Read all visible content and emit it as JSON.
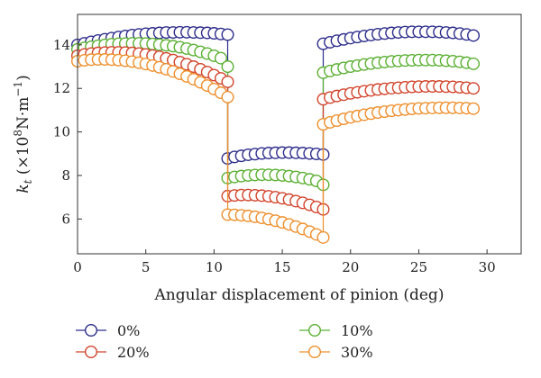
{
  "chart_data": {
    "type": "scatter",
    "xlabel": "Angular displacement of pinion (deg)",
    "ylabel": {
      "base": "k",
      "sub": "t",
      "unit_open": " (×10",
      "exp": "8",
      "unit_mid": "N·m",
      "unit_exp": "−1",
      "unit_close": ")"
    },
    "xlim": [
      0,
      32.5
    ],
    "ylim": [
      4.4,
      15.4
    ],
    "x_ticks": [
      0,
      5,
      10,
      15,
      20,
      25,
      30
    ],
    "y_ticks": [
      6,
      8,
      10,
      12,
      14
    ],
    "grid": false,
    "legend_position": "bottom",
    "x_step": 0.5,
    "series": [
      {
        "name": "0%",
        "color": "#2e2e8c",
        "segments": [
          {
            "x_start": 0,
            "x_end": 11,
            "values": [
              14.0,
              14.07,
              14.14,
              14.2,
              14.26,
              14.31,
              14.36,
              14.41,
              14.45,
              14.48,
              14.51,
              14.53,
              14.55,
              14.57,
              14.57,
              14.58,
              14.58,
              14.57,
              14.56,
              14.55,
              14.53,
              14.5,
              14.47
            ]
          },
          {
            "x_start": 11,
            "x_end": 18,
            "values": [
              8.78,
              8.85,
              8.9,
              8.95,
              8.98,
              9.01,
              9.03,
              9.04,
              9.05,
              9.05,
              9.04,
              9.03,
              9.01,
              8.99,
              8.96
            ]
          },
          {
            "x_start": 18,
            "x_end": 29,
            "values": [
              14.05,
              14.12,
              14.19,
              14.25,
              14.31,
              14.36,
              14.41,
              14.45,
              14.49,
              14.52,
              14.55,
              14.57,
              14.59,
              14.6,
              14.6,
              14.6,
              14.6,
              14.59,
              14.57,
              14.55,
              14.52,
              14.48,
              14.43
            ]
          }
        ]
      },
      {
        "name": "10%",
        "color": "#5bb033",
        "segments": [
          {
            "x_start": 0,
            "x_end": 11,
            "values": [
              13.8,
              13.86,
              13.91,
              13.96,
              14.0,
              14.03,
              14.05,
              14.06,
              14.07,
              14.07,
              14.06,
              14.04,
              14.01,
              13.98,
              13.94,
              13.89,
              13.83,
              13.76,
              13.68,
              13.6,
              13.5,
              13.39,
              13.0
            ]
          },
          {
            "x_start": 11,
            "x_end": 18,
            "values": [
              7.88,
              7.93,
              7.97,
              8.0,
              8.02,
              8.03,
              8.03,
              8.02,
              8.0,
              7.97,
              7.93,
              7.88,
              7.82,
              7.75,
              7.57
            ]
          },
          {
            "x_start": 18,
            "x_end": 29,
            "values": [
              12.72,
              12.8,
              12.87,
              12.94,
              13.0,
              13.05,
              13.1,
              13.14,
              13.18,
              13.21,
              13.24,
              13.26,
              13.28,
              13.29,
              13.3,
              13.3,
              13.3,
              13.29,
              13.27,
              13.25,
              13.22,
              13.18,
              13.13
            ]
          }
        ]
      },
      {
        "name": "20%",
        "color": "#d2442c",
        "segments": [
          {
            "x_start": 0,
            "x_end": 11,
            "values": [
              13.5,
              13.56,
              13.6,
              13.63,
              13.65,
              13.66,
              13.66,
              13.65,
              13.63,
              13.6,
              13.56,
              13.51,
              13.45,
              13.38,
              13.3,
              13.21,
              13.11,
              13.0,
              12.88,
              12.75,
              12.61,
              12.46,
              12.3
            ]
          },
          {
            "x_start": 11,
            "x_end": 18,
            "values": [
              7.05,
              7.08,
              7.1,
              7.1,
              7.09,
              7.07,
              7.04,
              7.0,
              6.95,
              6.89,
              6.82,
              6.74,
              6.65,
              6.55,
              6.44
            ]
          },
          {
            "x_start": 18,
            "x_end": 29,
            "values": [
              11.5,
              11.58,
              11.65,
              11.71,
              11.77,
              11.82,
              11.87,
              11.91,
              11.95,
              11.98,
              12.01,
              12.03,
              12.05,
              12.07,
              12.08,
              12.09,
              12.09,
              12.09,
              12.08,
              12.07,
              12.05,
              12.03,
              12.0
            ]
          }
        ]
      },
      {
        "name": "30%",
        "color": "#ee8f2c",
        "segments": [
          {
            "x_start": 0,
            "x_end": 11,
            "values": [
              13.25,
              13.29,
              13.32,
              13.33,
              13.33,
              13.32,
              13.3,
              13.27,
              13.23,
              13.18,
              13.12,
              13.05,
              12.97,
              12.88,
              12.78,
              12.67,
              12.55,
              12.42,
              12.28,
              12.13,
              11.97,
              11.8,
              11.6
            ]
          },
          {
            "x_start": 11,
            "x_end": 18,
            "values": [
              6.2,
              6.19,
              6.17,
              6.14,
              6.1,
              6.05,
              5.99,
              5.92,
              5.84,
              5.75,
              5.65,
              5.54,
              5.42,
              5.29,
              5.15
            ]
          },
          {
            "x_start": 18,
            "x_end": 29,
            "values": [
              10.35,
              10.44,
              10.52,
              10.6,
              10.67,
              10.73,
              10.79,
              10.84,
              10.89,
              10.93,
              10.97,
              11.0,
              11.03,
              11.06,
              11.08,
              11.09,
              11.1,
              11.11,
              11.11,
              11.11,
              11.1,
              11.09,
              11.07
            ]
          }
        ]
      }
    ]
  }
}
